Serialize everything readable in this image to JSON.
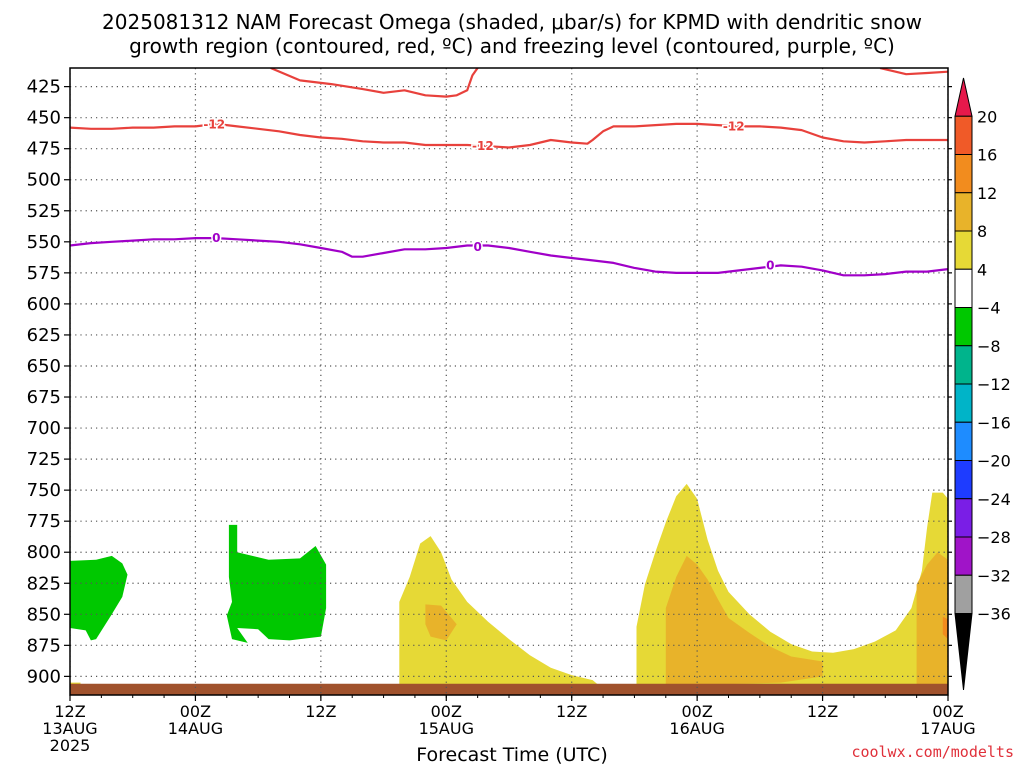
{
  "title_line1": "2025081312 NAM Forecast Omega (shaded, μbar/s) for KPMD with dendritic snow",
  "title_line2": "growth region (contoured, red, ºC) and freezing level (contoured, purple, ºC)",
  "credit": "coolwx.com/modelts",
  "chart_data": {
    "type": "heatmap",
    "xlabel": "Forecast Time (UTC)",
    "ylabel": "",
    "x_range_hours": [
      0,
      84
    ],
    "y_range_hpa": [
      410,
      915
    ],
    "y_scale": "linear",
    "y_inverted": true,
    "grid": "dotted",
    "legend": "right colorbar",
    "x_ticks": [
      {
        "h": 0,
        "l1": "12Z",
        "l2": "13AUG",
        "l3": "2025"
      },
      {
        "h": 12,
        "l1": "00Z",
        "l2": "14AUG",
        "l3": ""
      },
      {
        "h": 24,
        "l1": "12Z",
        "l2": "",
        "l3": ""
      },
      {
        "h": 36,
        "l1": "00Z",
        "l2": "15AUG",
        "l3": ""
      },
      {
        "h": 48,
        "l1": "12Z",
        "l2": "",
        "l3": ""
      },
      {
        "h": 60,
        "l1": "00Z",
        "l2": "16AUG",
        "l3": ""
      },
      {
        "h": 72,
        "l1": "12Z",
        "l2": "",
        "l3": ""
      },
      {
        "h": 84,
        "l1": "00Z",
        "l2": "17AUG",
        "l3": ""
      }
    ],
    "y_ticks": [
      425,
      450,
      475,
      500,
      525,
      550,
      575,
      600,
      625,
      650,
      675,
      700,
      725,
      750,
      775,
      800,
      825,
      850,
      875,
      900
    ],
    "colorbar": {
      "labels": [
        "20",
        "16",
        "12",
        "8",
        "4",
        "−4",
        "−8",
        "−12",
        "−16",
        "−20",
        "−24",
        "−28",
        "−32",
        "−36"
      ],
      "colors": [
        "#e6194b",
        "#f05a28",
        "#f28c1e",
        "#e8b32a",
        "#e6d936",
        "#ffffff",
        "#00c800",
        "#00b48c",
        "#00b4c8",
        "#1e8cff",
        "#1e3cff",
        "#7a1ee6",
        "#a014c8",
        "#a0a0a0",
        "#000000"
      ]
    },
    "contours": [
      {
        "name": "-12",
        "color": "#e8413c",
        "label": "-12",
        "points": [
          [
            0,
            458
          ],
          [
            2,
            459
          ],
          [
            4,
            459
          ],
          [
            6,
            458
          ],
          [
            8,
            458
          ],
          [
            10,
            457
          ],
          [
            12,
            457
          ],
          [
            13,
            456
          ],
          [
            14,
            455
          ],
          [
            16,
            457
          ],
          [
            18,
            459
          ],
          [
            20,
            461
          ],
          [
            22,
            464
          ],
          [
            24,
            466
          ],
          [
            26,
            467
          ],
          [
            28,
            469
          ],
          [
            30,
            470
          ],
          [
            32,
            470
          ],
          [
            34,
            472
          ],
          [
            36,
            472
          ],
          [
            38,
            472
          ],
          [
            40,
            473
          ],
          [
            42,
            474
          ],
          [
            44,
            472
          ],
          [
            46,
            468
          ],
          [
            48,
            470
          ],
          [
            49.5,
            471
          ],
          [
            50,
            468
          ],
          [
            51,
            461
          ],
          [
            52,
            457
          ],
          [
            54,
            457
          ],
          [
            56,
            456
          ],
          [
            58,
            455
          ],
          [
            60,
            455
          ],
          [
            62,
            456
          ],
          [
            64,
            457
          ],
          [
            66,
            457
          ],
          [
            68,
            458
          ],
          [
            70,
            460
          ],
          [
            72,
            466
          ],
          [
            74,
            469
          ],
          [
            76,
            470
          ],
          [
            78,
            469
          ],
          [
            80,
            468
          ],
          [
            82,
            468
          ],
          [
            84,
            468
          ]
        ]
      },
      {
        "name": "-12-top1",
        "color": "#e8413c",
        "label": "",
        "points": [
          [
            19.2,
            410
          ],
          [
            22,
            420
          ],
          [
            25,
            423
          ],
          [
            28,
            427
          ],
          [
            30,
            430
          ],
          [
            32,
            428
          ],
          [
            34,
            432
          ],
          [
            36,
            433
          ],
          [
            37,
            432
          ],
          [
            38,
            428
          ],
          [
            38.5,
            416
          ],
          [
            39,
            410
          ]
        ]
      },
      {
        "name": "-12-top2",
        "color": "#e8413c",
        "label": "",
        "points": [
          [
            77.5,
            410
          ],
          [
            80,
            415
          ],
          [
            82,
            414
          ],
          [
            84,
            413
          ]
        ]
      },
      {
        "name": "0",
        "color": "#a000c8",
        "label": "0",
        "points": [
          [
            0,
            553
          ],
          [
            2,
            551
          ],
          [
            4,
            550
          ],
          [
            6,
            549
          ],
          [
            8,
            548
          ],
          [
            10,
            548
          ],
          [
            12,
            547
          ],
          [
            14,
            547
          ],
          [
            16,
            548
          ],
          [
            18,
            549
          ],
          [
            20,
            550
          ],
          [
            22,
            552
          ],
          [
            24,
            555
          ],
          [
            26,
            558
          ],
          [
            27,
            562
          ],
          [
            28,
            562
          ],
          [
            30,
            559
          ],
          [
            32,
            556
          ],
          [
            34,
            556
          ],
          [
            36,
            555
          ],
          [
            38,
            553
          ],
          [
            40,
            553
          ],
          [
            42,
            555
          ],
          [
            44,
            558
          ],
          [
            46,
            561
          ],
          [
            48,
            563
          ],
          [
            50,
            565
          ],
          [
            52,
            567
          ],
          [
            54,
            571
          ],
          [
            56,
            574
          ],
          [
            58,
            575
          ],
          [
            60,
            575
          ],
          [
            62,
            575
          ],
          [
            64,
            573
          ],
          [
            66,
            571
          ],
          [
            68,
            569
          ],
          [
            70,
            570
          ],
          [
            72,
            573
          ],
          [
            74,
            577
          ],
          [
            76,
            577
          ],
          [
            78,
            576
          ],
          [
            80,
            574
          ],
          [
            82,
            574
          ],
          [
            84,
            572
          ]
        ]
      }
    ],
    "shaded_regions": [
      {
        "name": "omega -4 to -8 green (13 Aug 12Z-15Z)",
        "color": "#00c800",
        "level": "-4 to -8",
        "points": [
          [
            0,
            807
          ],
          [
            2.5,
            806
          ],
          [
            4,
            803
          ],
          [
            5,
            809
          ],
          [
            5.5,
            818
          ],
          [
            5,
            836
          ],
          [
            4,
            850
          ],
          [
            2.5,
            870
          ],
          [
            2,
            871
          ],
          [
            1.5,
            863
          ],
          [
            0,
            861
          ]
        ]
      },
      {
        "name": "omega -4 to -8 green (14 Aug 04Z-08Z)",
        "color": "#00c800",
        "level": "-4 to -8",
        "points": [
          [
            15.2,
            778
          ],
          [
            16,
            778
          ],
          [
            16,
            800
          ],
          [
            19,
            806
          ],
          [
            22,
            805
          ],
          [
            23.5,
            795
          ],
          [
            24.5,
            810
          ],
          [
            24.5,
            845
          ],
          [
            24,
            868
          ],
          [
            21,
            871
          ],
          [
            19,
            870
          ],
          [
            18,
            862
          ],
          [
            16,
            861
          ],
          [
            17,
            873
          ],
          [
            15.5,
            870
          ],
          [
            15,
            851
          ],
          [
            15.5,
            840
          ],
          [
            15.2,
            820
          ]
        ]
      },
      {
        "name": "omega 4 to 8 yellow (15 Aug)",
        "color": "#e6d936",
        "level": "4 to 8",
        "points": [
          [
            31.5,
            910
          ],
          [
            31.5,
            840
          ],
          [
            32.5,
            820
          ],
          [
            33.5,
            793
          ],
          [
            34.5,
            787
          ],
          [
            35.5,
            800
          ],
          [
            36.5,
            822
          ],
          [
            38,
            840
          ],
          [
            40,
            856
          ],
          [
            42,
            870
          ],
          [
            44,
            883
          ],
          [
            46,
            893
          ],
          [
            48,
            899
          ],
          [
            50,
            903
          ],
          [
            51,
            910
          ]
        ]
      },
      {
        "name": "omega 8 to 12 orange (15 Aug 00Z)",
        "color": "#e8b32a",
        "level": "8 to 12",
        "points": [
          [
            34,
            842
          ],
          [
            35.5,
            843
          ],
          [
            37,
            858
          ],
          [
            36,
            871
          ],
          [
            34.5,
            868
          ],
          [
            34,
            858
          ]
        ]
      },
      {
        "name": "omega 4 to 8 yellow (16 Aug)",
        "color": "#e6d936",
        "level": "4 to 8",
        "points": [
          [
            54.2,
            915
          ],
          [
            54.2,
            860
          ],
          [
            55,
            826
          ],
          [
            56,
            800
          ],
          [
            57,
            776
          ],
          [
            58,
            755
          ],
          [
            59,
            745
          ],
          [
            60,
            757
          ],
          [
            61,
            790
          ],
          [
            62,
            815
          ],
          [
            63,
            832
          ],
          [
            65,
            850
          ],
          [
            67,
            864
          ],
          [
            69,
            874
          ],
          [
            71,
            880
          ],
          [
            73,
            881
          ],
          [
            75,
            878
          ],
          [
            77,
            872
          ],
          [
            79,
            863
          ],
          [
            80.5,
            845
          ],
          [
            81.5,
            815
          ],
          [
            82,
            780
          ],
          [
            82.5,
            752
          ],
          [
            83.5,
            752
          ],
          [
            84,
            757
          ],
          [
            84,
            915
          ]
        ]
      },
      {
        "name": "omega 8 to 12 orange (16 Aug)",
        "color": "#e8b32a",
        "level": "8 to 12",
        "points": [
          [
            57,
            915
          ],
          [
            57,
            845
          ],
          [
            58,
            820
          ],
          [
            59,
            803
          ],
          [
            60,
            810
          ],
          [
            61,
            822
          ],
          [
            62,
            838
          ],
          [
            63,
            853
          ],
          [
            65,
            865
          ],
          [
            67,
            876
          ],
          [
            69,
            884
          ],
          [
            72,
            888
          ],
          [
            72,
            900
          ],
          [
            68,
            905
          ],
          [
            60,
            907
          ]
        ]
      },
      {
        "name": "omega 8 to 12 orange (17 Aug)",
        "color": "#e8b32a",
        "level": "8 to 12",
        "points": [
          [
            81,
            915
          ],
          [
            81,
            826
          ],
          [
            82,
            810
          ],
          [
            83,
            800
          ],
          [
            84,
            806
          ],
          [
            84,
            915
          ]
        ]
      },
      {
        "name": "omega 12 to 16 dark orange (17 Aug)",
        "color": "#f28c1e",
        "level": "12 to 16",
        "points": [
          [
            83.5,
            852
          ],
          [
            84,
            854
          ],
          [
            84,
            870
          ],
          [
            83.5,
            866
          ]
        ]
      },
      {
        "name": "omega 4 to 8 yellow (13 Aug 12Z)",
        "color": "#e6d936",
        "level": "4 to 8",
        "points": [
          [
            0,
            905
          ],
          [
            1,
            905
          ],
          [
            1,
            915
          ],
          [
            0,
            915
          ]
        ]
      },
      {
        "name": "omega 4 to 8 yellow (14 Aug 03Z)",
        "color": "#e6d936",
        "level": "4 to 8",
        "points": [
          [
            15,
            907
          ],
          [
            18,
            908
          ],
          [
            18,
            915
          ],
          [
            15,
            915
          ]
        ]
      },
      {
        "name": "surface (terrain)",
        "color": "#a0522d",
        "level": "ground",
        "points": [
          [
            0,
            915
          ],
          [
            84,
            915
          ],
          [
            84,
            906
          ],
          [
            0,
            906
          ]
        ]
      }
    ],
    "contour_labels": [
      {
        "text": "-12",
        "x": 13.8,
        "y": 455.5,
        "color": "#e8413c"
      },
      {
        "text": "-12",
        "x": 39.5,
        "y": 473,
        "color": "#e8413c"
      },
      {
        "text": "-12",
        "x": 63.5,
        "y": 457,
        "color": "#e8413c"
      },
      {
        "text": "0",
        "x": 14,
        "y": 547,
        "color": "#a000c8"
      },
      {
        "text": "0",
        "x": 39,
        "y": 554,
        "color": "#a000c8"
      },
      {
        "text": "0",
        "x": 67,
        "y": 569,
        "color": "#a000c8"
      }
    ]
  }
}
